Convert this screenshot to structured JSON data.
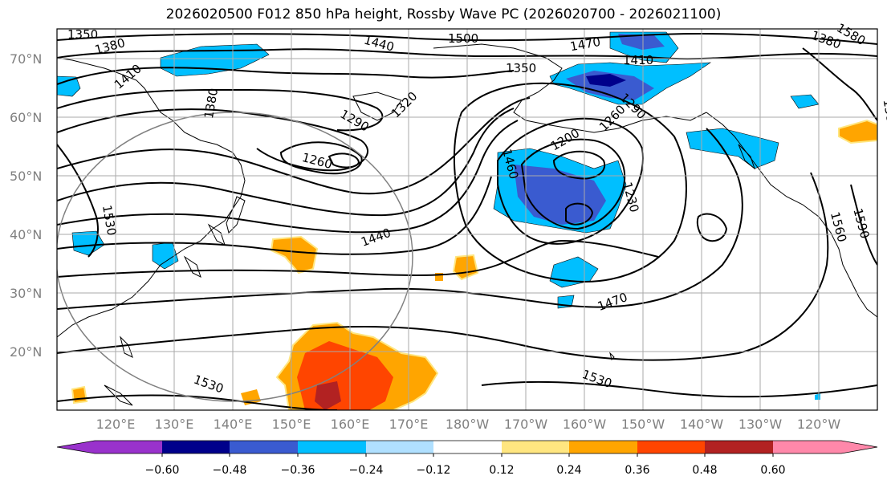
{
  "title": "2026020500 F012 850 hPa height, Rossby Wave PC (2026020700 - 2026021100)",
  "map": {
    "lat_labels": [
      "70°N",
      "60°N",
      "50°N",
      "40°N",
      "30°N",
      "20°N"
    ],
    "lon_labels": [
      "120°E",
      "130°E",
      "140°E",
      "150°E",
      "160°E",
      "170°E",
      "180°W",
      "170°W",
      "160°W",
      "150°W",
      "140°W",
      "130°W",
      "120°W"
    ],
    "contour_labels": [
      "1350",
      "1380",
      "1410",
      "1440",
      "1500",
      "1470",
      "1410",
      "1350",
      "1380",
      "1580",
      "1320",
      "1290",
      "1260",
      "1380",
      "1200",
      "1290",
      "1460",
      "1260",
      "1230",
      "1440",
      "1530",
      "1530",
      "1470",
      "1530",
      "1560",
      "1590",
      "1380"
    ]
  },
  "colorbar": {
    "ticks": [
      "−0.60",
      "−0.48",
      "−0.36",
      "−0.24",
      "−0.12",
      "0.12",
      "0.24",
      "0.36",
      "0.48",
      "0.60"
    ],
    "colors": [
      "#9932cc",
      "#00008b",
      "#3a5bd0",
      "#00bfff",
      "#b0e0ff",
      "#ffffff",
      "#ffe680",
      "#ffa500",
      "#ff4500",
      "#b22222",
      "#ff88aa"
    ]
  }
}
